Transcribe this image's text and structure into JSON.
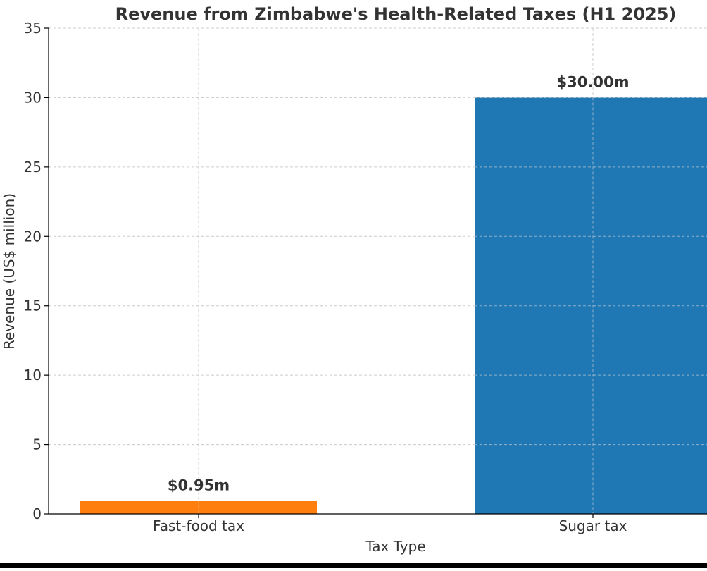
{
  "chart_data": {
    "type": "bar",
    "title": "Revenue from Zimbabwe's Health-Related Taxes (H1 2025)",
    "xlabel": "Tax Type",
    "ylabel": "Revenue (US$ million)",
    "categories": [
      "Fast-food tax",
      "Sugar tax"
    ],
    "values": [
      0.95,
      30.0
    ],
    "data_labels": [
      "$0.95m",
      "$30.00m"
    ],
    "bar_colors": [
      "#ff7f0e",
      "#1f77b4"
    ],
    "ylim": [
      0,
      35
    ],
    "yticks": [
      0,
      5,
      10,
      15,
      20,
      25,
      30,
      35
    ],
    "grid": true,
    "legend": "none"
  }
}
